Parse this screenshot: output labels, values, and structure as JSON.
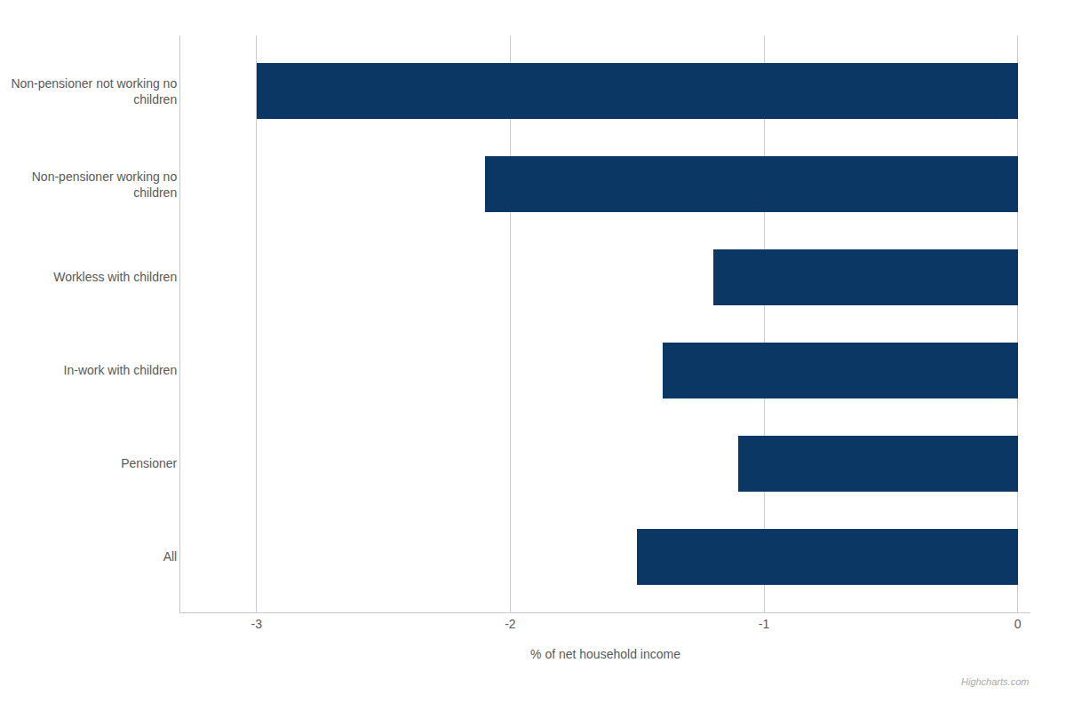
{
  "chart_data": {
    "type": "bar",
    "orientation": "horizontal",
    "categories": [
      "All",
      "Pensioner",
      "In-work with children",
      "Workless with children",
      "Non-pensioner working no\nchildren",
      "Non-pensioner not working no\nchildren"
    ],
    "values": [
      -1.5,
      -1.1,
      -1.4,
      -1.2,
      -2.1,
      -3.0
    ],
    "color": "#0a3764",
    "xlabel": "% of net household income",
    "xlim": [
      -3.3,
      0.05
    ],
    "xticks": [
      -3,
      -2,
      -1,
      0
    ],
    "grid": true,
    "annotations": [
      "Highcharts.com"
    ]
  }
}
